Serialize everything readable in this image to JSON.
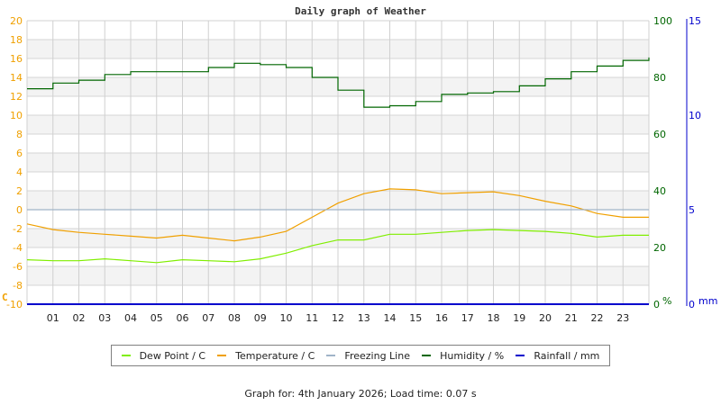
{
  "chart_data": {
    "type": "line",
    "title": "Daily graph of Weather",
    "xlabel": "",
    "x_ticks": [
      "01",
      "02",
      "03",
      "04",
      "05",
      "06",
      "07",
      "08",
      "09",
      "10",
      "11",
      "12",
      "13",
      "14",
      "15",
      "16",
      "17",
      "18",
      "19",
      "20",
      "21",
      "22",
      "23"
    ],
    "x_hours": [
      0,
      1,
      2,
      3,
      4,
      5,
      6,
      7,
      8,
      9,
      10,
      11,
      12,
      13,
      14,
      15,
      16,
      17,
      18,
      19,
      20,
      21,
      22,
      23,
      24
    ],
    "axes": {
      "left": {
        "label": "C",
        "ylim": [
          -10,
          20
        ],
        "ticks": [
          "20",
          "18",
          "16",
          "14",
          "12",
          "10",
          "8",
          "6",
          "4",
          "2",
          "0",
          "-2",
          "-4",
          "-6",
          "-8",
          "-10"
        ],
        "color": "#f0a000"
      },
      "right_humidity": {
        "label": "%",
        "ylim": [
          0,
          100
        ],
        "ticks": [
          "100",
          "80",
          "60",
          "40",
          "20",
          "0"
        ],
        "color": "#006600"
      },
      "right_rain": {
        "label": "mm",
        "ylim": [
          0,
          15
        ],
        "ticks": [
          "15",
          "10",
          "5",
          "0"
        ],
        "color": "#0000cc"
      }
    },
    "grid": true,
    "legend_position": "bottom",
    "series": [
      {
        "name": "Dew Point / C",
        "color": "#80ee00",
        "axis": "left",
        "values": [
          -5.3,
          -5.4,
          -5.4,
          -5.2,
          -5.4,
          -5.6,
          -5.3,
          -5.4,
          -5.5,
          -5.2,
          -4.6,
          -3.8,
          -3.2,
          -3.2,
          -2.6,
          -2.6,
          -2.4,
          -2.2,
          -2.1,
          -2.2,
          -2.3,
          -2.5,
          -2.9,
          -2.7,
          -2.7
        ]
      },
      {
        "name": "Temperature / C",
        "color": "#f0a000",
        "axis": "left",
        "values": [
          -1.5,
          -2.1,
          -2.4,
          -2.6,
          -2.8,
          -3.0,
          -2.7,
          -3.0,
          -3.3,
          -2.9,
          -2.3,
          -0.8,
          0.7,
          1.7,
          2.2,
          2.1,
          1.7,
          1.8,
          1.9,
          1.5,
          0.9,
          0.4,
          -0.4,
          -0.8,
          -0.8
        ]
      },
      {
        "name": "Freezing Line",
        "color": "#a0b4c8",
        "axis": "left",
        "values": [
          0,
          0,
          0,
          0,
          0,
          0,
          0,
          0,
          0,
          0,
          0,
          0,
          0,
          0,
          0,
          0,
          0,
          0,
          0,
          0,
          0,
          0,
          0,
          0,
          0
        ]
      },
      {
        "name": "Humidity / %",
        "color": "#006600",
        "axis": "right_humidity",
        "values": [
          76,
          78,
          79,
          81,
          82,
          82,
          82,
          83.5,
          85,
          84.5,
          83.5,
          80,
          75.5,
          69.5,
          70,
          71.5,
          74,
          74.5,
          75,
          77,
          79.5,
          82,
          84,
          86,
          87
        ]
      },
      {
        "name": "Rainfall / mm",
        "color": "#0000cc",
        "axis": "right_rain",
        "values": [
          0,
          0,
          0,
          0,
          0,
          0,
          0,
          0,
          0,
          0,
          0,
          0,
          0,
          0,
          0,
          0,
          0,
          0,
          0,
          0,
          0,
          0,
          0,
          0,
          0
        ]
      }
    ]
  },
  "legend": {
    "items": [
      {
        "label": "Dew Point / C",
        "color": "#80ee00"
      },
      {
        "label": "Temperature / C",
        "color": "#f0a000"
      },
      {
        "label": "Freezing Line",
        "color": "#a0b4c8"
      },
      {
        "label": "Humidity / %",
        "color": "#006600"
      },
      {
        "label": "Rainfall / mm",
        "color": "#0000cc"
      }
    ]
  },
  "footer": {
    "text": "Graph for: 4th January 2026; Load time: 0.07 s"
  }
}
